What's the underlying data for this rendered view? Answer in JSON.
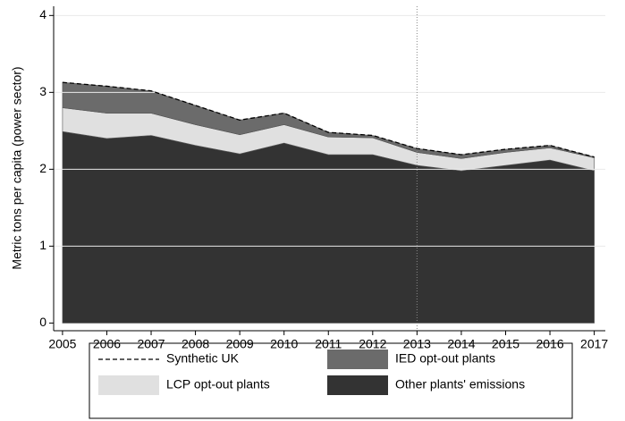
{
  "chart_data": {
    "type": "stacked_area",
    "y_label": "Metric tons per capita (power sector)",
    "x": [
      2005,
      2006,
      2007,
      2008,
      2009,
      2010,
      2011,
      2012,
      2013,
      2014,
      2015,
      2016,
      2017
    ],
    "xlim": [
      2004.8,
      2017.25
    ],
    "xticks": [
      2005,
      2006,
      2007,
      2008,
      2009,
      2010,
      2011,
      2012,
      2013,
      2014,
      2015,
      2016,
      2017
    ],
    "ylim": [
      -0.1,
      4.12
    ],
    "yticks": [
      0,
      1,
      2,
      3,
      4
    ],
    "grid": true,
    "reference_line_x": 2013,
    "series": [
      {
        "name": "Synthetic UK",
        "kind": "dashed_line",
        "color": "#000000",
        "values": [
          3.13,
          3.08,
          3.02,
          2.83,
          2.64,
          2.73,
          2.48,
          2.44,
          2.27,
          2.19,
          2.26,
          2.31,
          2.16
        ]
      },
      {
        "name": "IED opt-out plants",
        "kind": "stack",
        "color": "#6b6b6b",
        "values": [
          0.33,
          0.35,
          0.29,
          0.25,
          0.19,
          0.15,
          0.06,
          0.03,
          0.05,
          0.05,
          0.04,
          0.03,
          0.01
        ]
      },
      {
        "name": "LCP opt-out plants",
        "kind": "stack",
        "color": "#e0e0e0",
        "values": [
          0.31,
          0.33,
          0.29,
          0.27,
          0.25,
          0.24,
          0.23,
          0.22,
          0.17,
          0.16,
          0.17,
          0.16,
          0.17
        ]
      },
      {
        "name": "Other plants' emissions",
        "kind": "stack",
        "color": "#333333",
        "values": [
          2.49,
          2.4,
          2.44,
          2.31,
          2.2,
          2.34,
          2.19,
          2.19,
          2.05,
          1.98,
          2.05,
          2.12,
          1.98
        ]
      }
    ]
  }
}
